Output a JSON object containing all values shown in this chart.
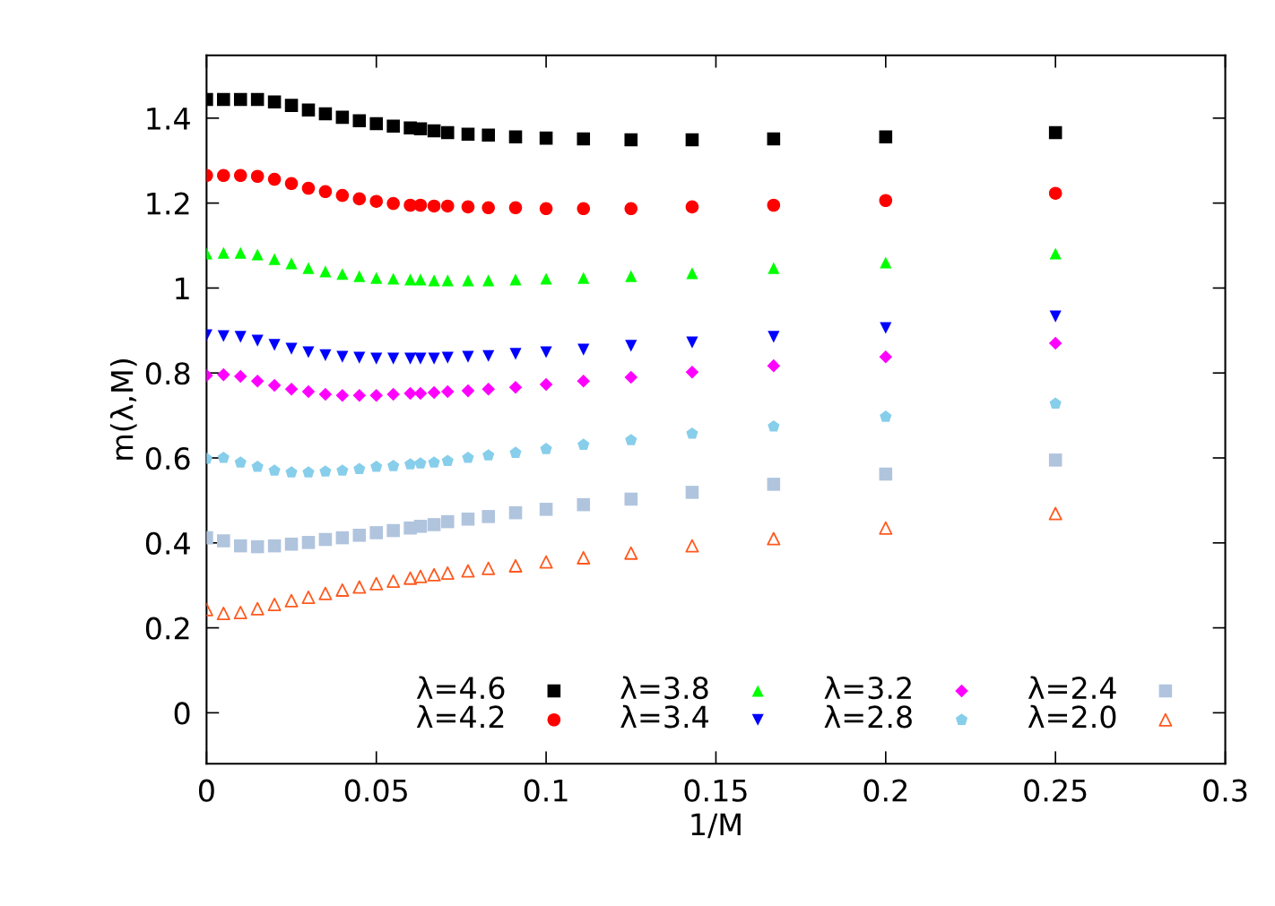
{
  "chart_data": {
    "type": "scatter",
    "xlabel": "1/M",
    "ylabel": "m(λ,M)",
    "x": [
      0,
      0.005,
      0.01,
      0.015,
      0.02,
      0.025,
      0.03,
      0.035,
      0.04,
      0.045,
      0.05,
      0.055,
      0.06,
      0.063,
      0.067,
      0.071,
      0.077,
      0.083,
      0.091,
      0.1,
      0.111,
      0.125,
      0.143,
      0.167,
      0.2,
      0.25
    ],
    "xlim": [
      0,
      0.3
    ],
    "xticks": [
      0,
      0.05,
      0.1,
      0.15,
      0.2,
      0.25,
      0.3
    ],
    "ylim": [
      -0.12,
      1.548
    ],
    "yticks": [
      0,
      0.2,
      0.4,
      0.6,
      0.8,
      1,
      1.2,
      1.4
    ],
    "grid": false,
    "legend": "bottom right",
    "series": [
      {
        "name": "λ=4.6",
        "color": "#000000",
        "marker": "square",
        "values": [
          1.444,
          1.444,
          1.444,
          1.444,
          1.438,
          1.43,
          1.419,
          1.41,
          1.402,
          1.394,
          1.387,
          1.381,
          1.377,
          1.375,
          1.37,
          1.366,
          1.362,
          1.36,
          1.356,
          1.353,
          1.351,
          1.349,
          1.349,
          1.351,
          1.356,
          1.366
        ]
      },
      {
        "name": "λ=4.2",
        "color": "#ff0000",
        "marker": "circle",
        "values": [
          1.265,
          1.265,
          1.265,
          1.263,
          1.256,
          1.246,
          1.235,
          1.227,
          1.218,
          1.21,
          1.204,
          1.199,
          1.195,
          1.195,
          1.193,
          1.193,
          1.191,
          1.189,
          1.189,
          1.187,
          1.187,
          1.187,
          1.191,
          1.195,
          1.206,
          1.223
        ]
      },
      {
        "name": "λ=3.8",
        "color": "#00ff00",
        "marker": "triangle",
        "values": [
          1.081,
          1.083,
          1.083,
          1.079,
          1.068,
          1.058,
          1.047,
          1.039,
          1.033,
          1.028,
          1.024,
          1.022,
          1.02,
          1.02,
          1.018,
          1.018,
          1.018,
          1.018,
          1.02,
          1.022,
          1.024,
          1.028,
          1.035,
          1.047,
          1.06,
          1.081
        ]
      },
      {
        "name": "λ=3.4",
        "color": "#0000ff",
        "marker": "triangle_down",
        "values": [
          0.889,
          0.887,
          0.885,
          0.876,
          0.866,
          0.857,
          0.849,
          0.842,
          0.838,
          0.836,
          0.834,
          0.834,
          0.834,
          0.834,
          0.834,
          0.836,
          0.838,
          0.84,
          0.845,
          0.849,
          0.855,
          0.864,
          0.872,
          0.885,
          0.906,
          0.933
        ]
      },
      {
        "name": "λ=3.2",
        "color": "#ff00ff",
        "marker": "diamond",
        "values": [
          0.794,
          0.796,
          0.792,
          0.781,
          0.771,
          0.762,
          0.756,
          0.75,
          0.747,
          0.747,
          0.747,
          0.75,
          0.752,
          0.752,
          0.754,
          0.756,
          0.758,
          0.762,
          0.766,
          0.773,
          0.781,
          0.79,
          0.802,
          0.817,
          0.838,
          0.87
        ]
      },
      {
        "name": "λ=2.8",
        "color": "#87ceeb",
        "values": [
          0.598,
          0.6,
          0.589,
          0.579,
          0.57,
          0.566,
          0.566,
          0.568,
          0.57,
          0.574,
          0.579,
          0.581,
          0.585,
          0.587,
          0.589,
          0.593,
          0.6,
          0.606,
          0.612,
          0.621,
          0.631,
          0.642,
          0.657,
          0.674,
          0.697,
          0.728
        ]
      },
      {
        "name": "λ=2.4",
        "color": "#b0c4de",
        "marker": "square",
        "values": [
          0.412,
          0.405,
          0.393,
          0.391,
          0.393,
          0.397,
          0.401,
          0.408,
          0.412,
          0.418,
          0.424,
          0.429,
          0.435,
          0.439,
          0.443,
          0.45,
          0.456,
          0.462,
          0.471,
          0.479,
          0.49,
          0.503,
          0.519,
          0.538,
          0.562,
          0.595
        ]
      },
      {
        "name": "λ=2.0",
        "color": "#ff5a1f",
        "marker": "triangle_open",
        "values": [
          0.243,
          0.234,
          0.236,
          0.245,
          0.255,
          0.264,
          0.272,
          0.281,
          0.289,
          0.296,
          0.304,
          0.31,
          0.317,
          0.321,
          0.325,
          0.329,
          0.334,
          0.34,
          0.346,
          0.355,
          0.365,
          0.376,
          0.393,
          0.41,
          0.435,
          0.469
        ]
      }
    ]
  }
}
